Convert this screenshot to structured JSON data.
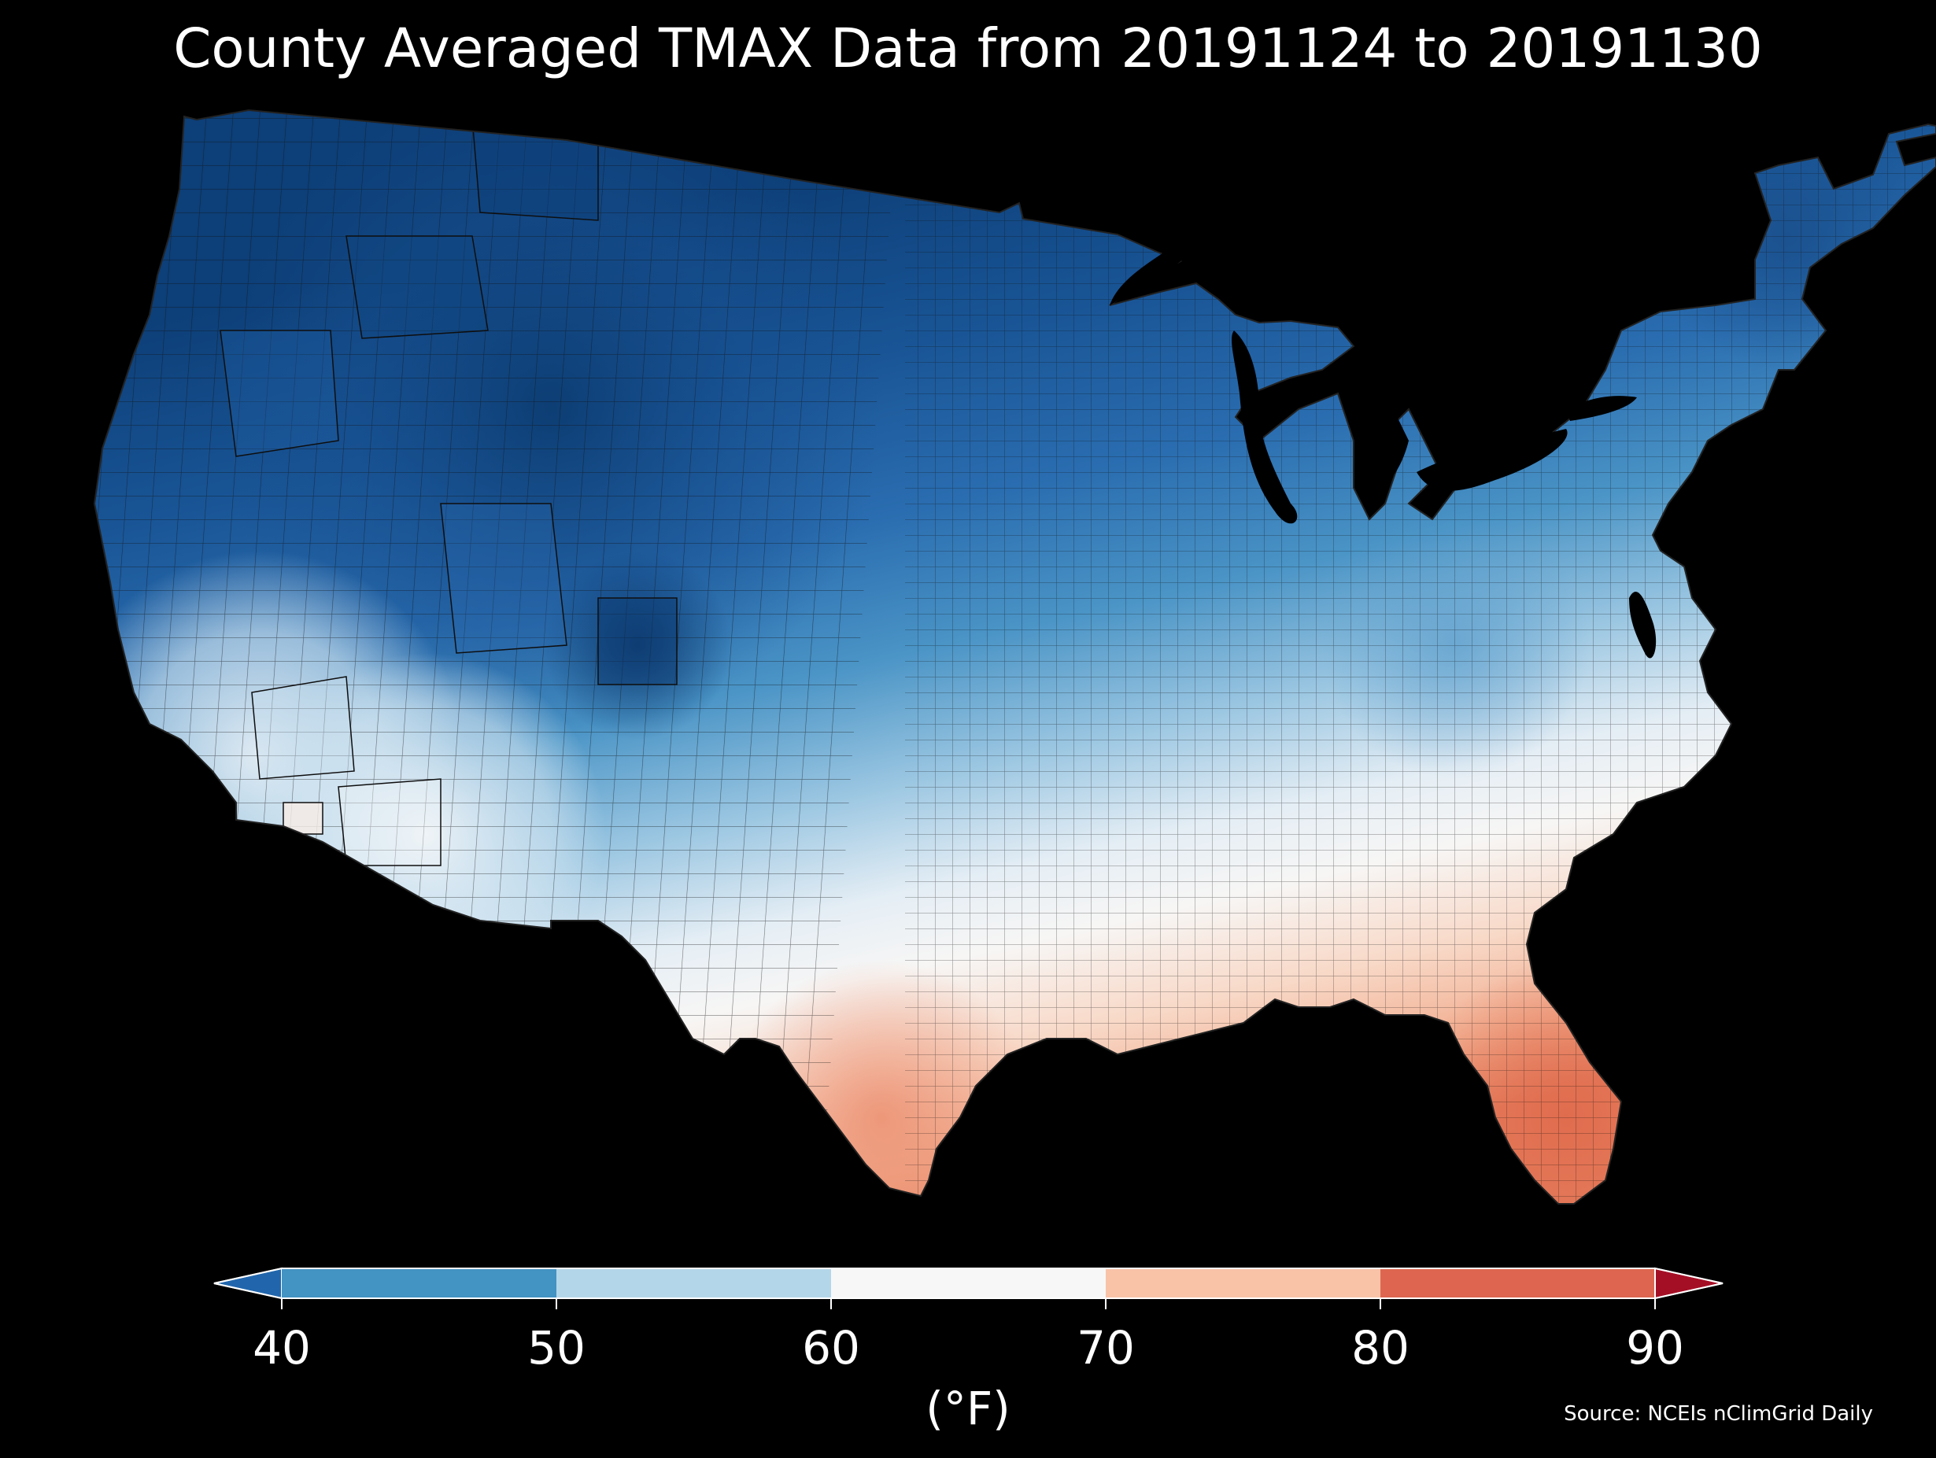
{
  "title": "County Averaged TMAX Data from 20191124 to 20191130",
  "legend": {
    "ticks": [
      "40",
      "50",
      "60",
      "70",
      "80",
      "90"
    ],
    "unit": "(°F)",
    "extend_low_color": "#2166ac",
    "extend_high_color": "#a50f26",
    "bins": [
      {
        "from": 40,
        "to": 50,
        "color": "#4393c3"
      },
      {
        "from": 50,
        "to": 60,
        "color": "#b4d6e9"
      },
      {
        "from": 60,
        "to": 70,
        "color": "#f7f7f7"
      },
      {
        "from": 70,
        "to": 80,
        "color": "#f9c3a8"
      },
      {
        "from": 80,
        "to": 90,
        "color": "#de6650"
      }
    ]
  },
  "source": "Source: NCEIs nClimGrid Daily",
  "map": {
    "region": "contiguous United States",
    "units": "county",
    "variable": "TMAX",
    "colors": {
      "coldest": "#0b3b70",
      "cold": "#2166ac",
      "cool": "#4a94c6",
      "mild": "#b4d6e9",
      "neutral": "#f4f6f8",
      "warm": "#f6cbb2",
      "hot": "#e88b6b",
      "water": "#000000",
      "border": "#1a1a1a"
    }
  }
}
